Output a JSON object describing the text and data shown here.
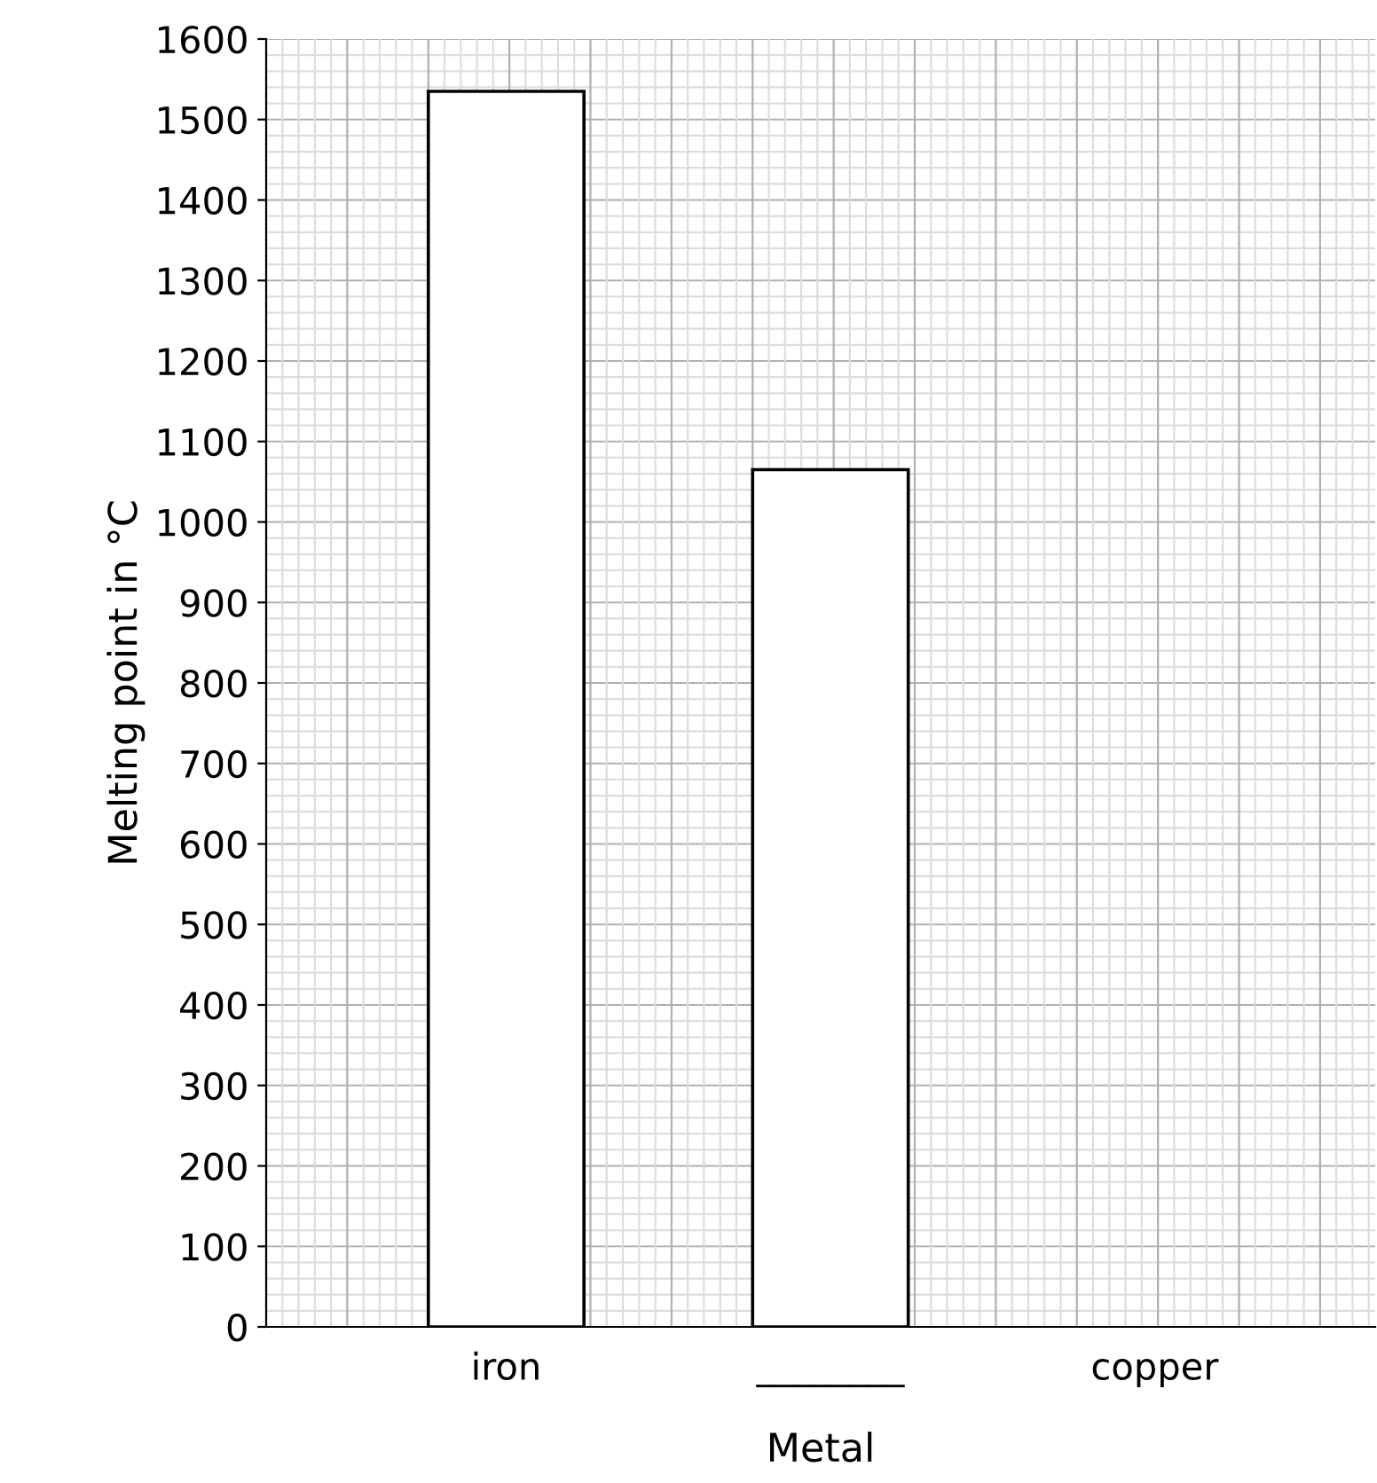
{
  "chart_data": {
    "type": "bar",
    "xlabel": "Metal",
    "ylabel": "Melting point in °C",
    "categories": [
      "iron",
      "________",
      "copper"
    ],
    "values": [
      1535,
      1065,
      null
    ],
    "color": "#ffffff",
    "ylim": [
      0,
      1600
    ],
    "yticks": [
      0,
      100,
      200,
      300,
      400,
      500,
      600,
      700,
      800,
      900,
      1000,
      1100,
      1200,
      1300,
      1400,
      1500,
      1600
    ],
    "grid": true
  }
}
